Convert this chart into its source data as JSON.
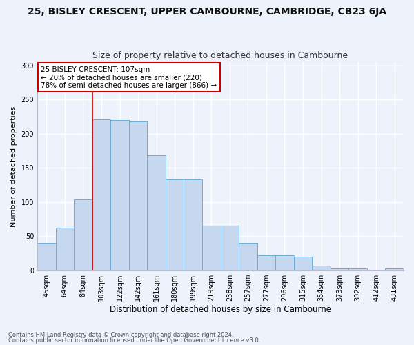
{
  "title_line1": "25, BISLEY CRESCENT, UPPER CAMBOURNE, CAMBRIDGE, CB23 6JA",
  "title_line2": "Size of property relative to detached houses in Cambourne",
  "xlabel": "Distribution of detached houses by size in Cambourne",
  "ylabel": "Number of detached properties",
  "bar_labels": [
    "45sqm",
    "64sqm",
    "84sqm",
    "103sqm",
    "122sqm",
    "142sqm",
    "161sqm",
    "180sqm",
    "199sqm",
    "219sqm",
    "238sqm",
    "257sqm",
    "277sqm",
    "296sqm",
    "315sqm",
    "354sqm",
    "373sqm",
    "392sqm",
    "412sqm",
    "431sqm"
  ],
  "bar_values": [
    40,
    63,
    104,
    221,
    220,
    218,
    168,
    133,
    133,
    66,
    66,
    40,
    22,
    22,
    20,
    7,
    3,
    3,
    0,
    3
  ],
  "bar_color": "#c5d8f0",
  "bar_edge_color": "#6baed6",
  "ylim": [
    0,
    305
  ],
  "yticks": [
    0,
    50,
    100,
    150,
    200,
    250,
    300
  ],
  "annotation_box_text": "25 BISLEY CRESCENT: 107sqm\n← 20% of detached houses are smaller (220)\n78% of semi-detached houses are larger (866) →",
  "vline_x_index": 3,
  "vline_color": "#cc0000",
  "annotation_box_color": "#ffffff",
  "annotation_box_edge_color": "#cc0000",
  "footnote_line1": "Contains HM Land Registry data © Crown copyright and database right 2024.",
  "footnote_line2": "Contains public sector information licensed under the Open Government Licence v3.0.",
  "bg_color": "#eef2fa",
  "grid_color": "#ffffff",
  "title_fontsize": 10,
  "subtitle_fontsize": 9
}
